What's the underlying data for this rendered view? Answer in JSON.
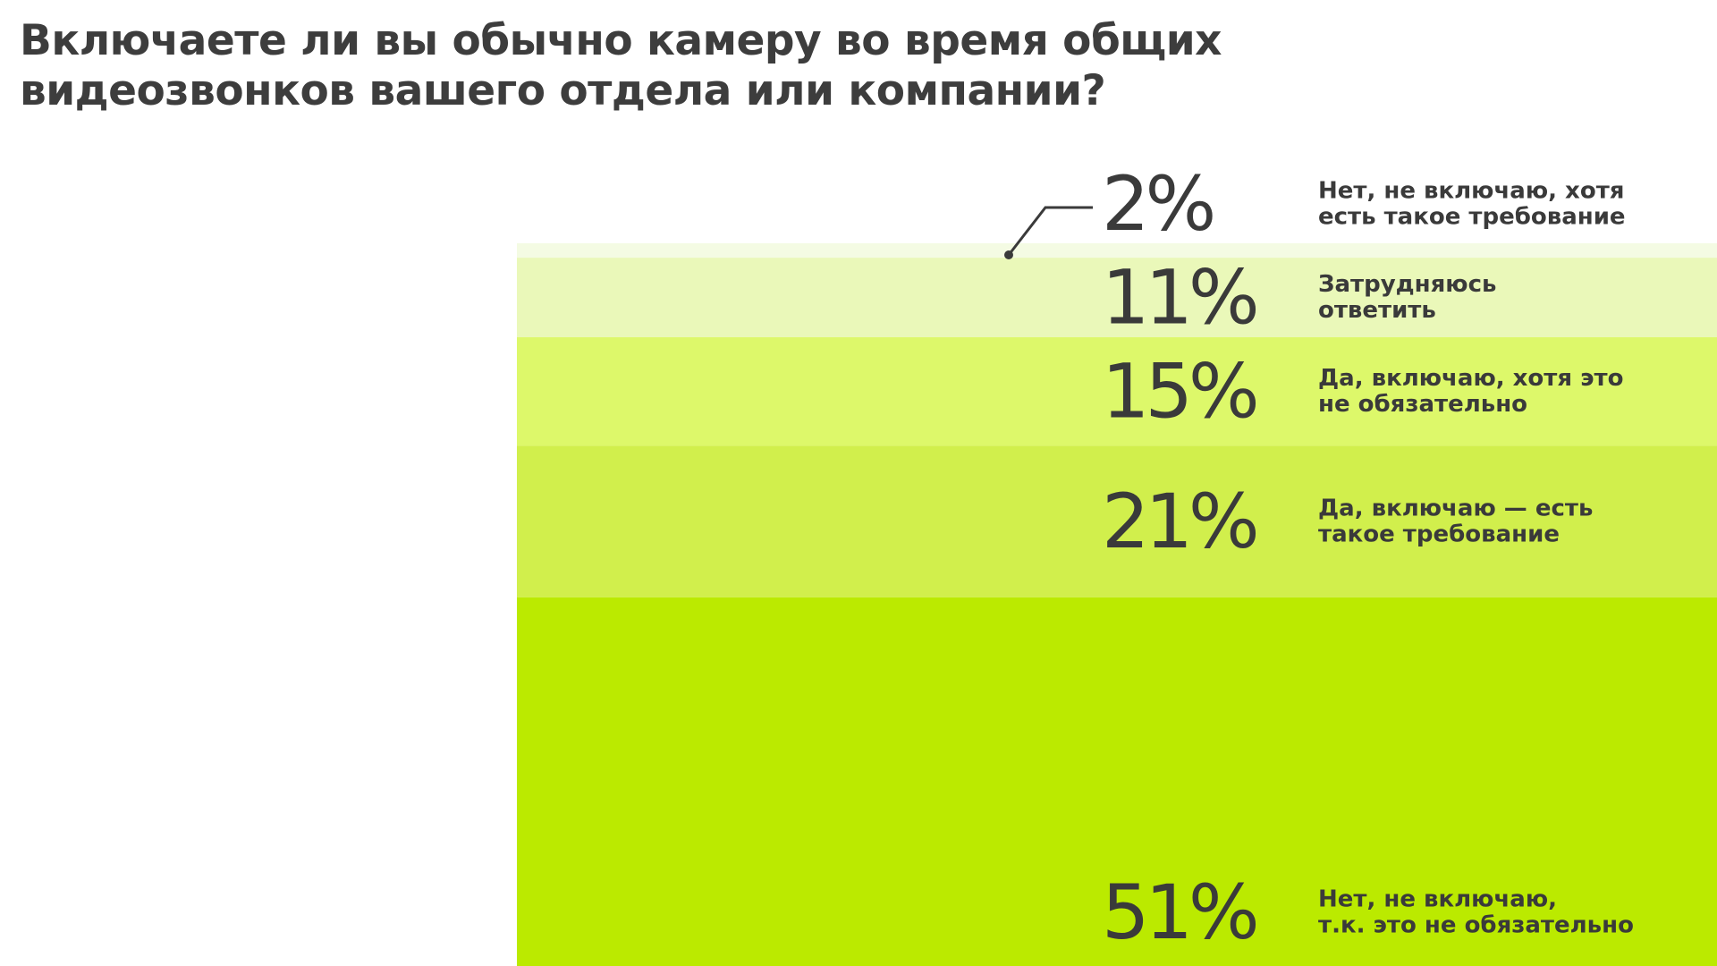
{
  "title": {
    "line1": "Включаете ли вы обычно камеру во время общих",
    "line2": "видеозвонков вашего отдела или компании?"
  },
  "chart_data": {
    "type": "bar",
    "stacked": true,
    "orientation": "vertical",
    "title": "Включаете ли вы обычно камеру во время общих видеозвонков вашего отдела или компании?",
    "unit": "%",
    "segments": [
      {
        "category": "Нет, не включаю, хотя есть такое требование",
        "label_lines": [
          "Нет, не включаю, хотя",
          "есть такое требование"
        ],
        "value": 2,
        "value_label": "2%",
        "color": "#f4fbe3",
        "callout": true
      },
      {
        "category": "Затрудняюсь ответить",
        "label_lines": [
          "Затрудняюсь",
          "ответить"
        ],
        "value": 11,
        "value_label": "11%",
        "color": "#eaf8b9"
      },
      {
        "category": "Да, включаю, хотя это не обязательно",
        "label_lines": [
          "Да, включаю, хотя это",
          "не обязательно"
        ],
        "value": 15,
        "value_label": "15%",
        "color": "#ddf86a"
      },
      {
        "category": "Да, включаю — есть такое требование",
        "label_lines": [
          "Да, включаю — есть",
          "такое требование"
        ],
        "value": 21,
        "value_label": "21%",
        "color": "#d1ef4c"
      },
      {
        "category": "Нет, не включаю, т.к. это не обязательно",
        "label_lines": [
          "Нет, не включаю,",
          "т.к. это не обязательно"
        ],
        "value": 51,
        "value_label": "51%",
        "color": "#bbea00"
      }
    ],
    "text_color": "#3a3a3a",
    "background": "#ffffff"
  }
}
